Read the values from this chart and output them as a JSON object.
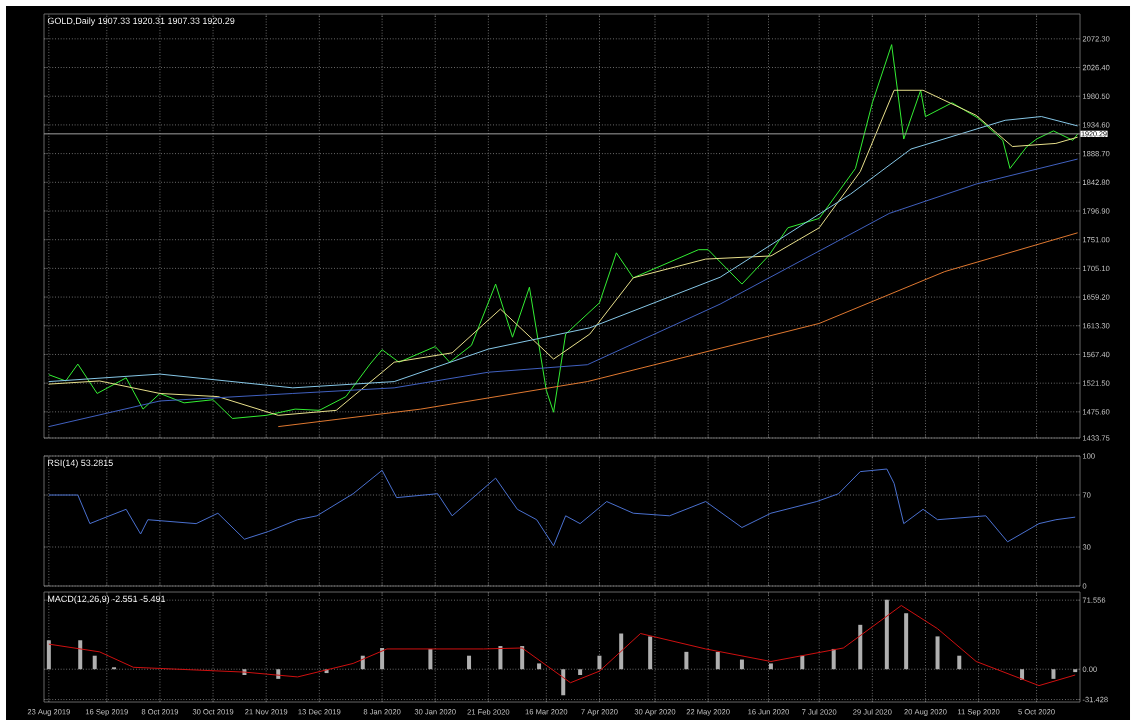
{
  "chart_data": [
    {
      "type": "line",
      "title": "GOLD,Daily 1907.33 1920.31 1907.33 1920.29",
      "grid": true,
      "tick_labels": "y",
      "xlim": [
        "2019-08-21",
        "2020-10-23"
      ],
      "xticks": [
        {
          "value": "2019-08-23",
          "label": null
        },
        {
          "value": "2019-09-16",
          "label": null
        },
        {
          "value": "2019-10-08",
          "label": null
        },
        {
          "value": "2019-10-30",
          "label": null
        },
        {
          "value": "2019-11-21",
          "label": null
        },
        {
          "value": "2019-12-13",
          "label": null
        },
        {
          "value": "2020-01-08",
          "label": null
        },
        {
          "value": "2020-01-30",
          "label": null
        },
        {
          "value": "2020-02-21",
          "label": null
        },
        {
          "value": "2020-03-16",
          "label": null
        },
        {
          "value": "2020-04-07",
          "label": null
        },
        {
          "value": "2020-04-30",
          "label": null
        },
        {
          "value": "2020-05-22",
          "label": null
        },
        {
          "value": "2020-06-16",
          "label": null
        },
        {
          "value": "2020-07-07",
          "label": null
        },
        {
          "value": "2020-07-29",
          "label": null
        },
        {
          "value": "2020-08-20",
          "label": null
        },
        {
          "value": "2020-09-11",
          "label": null
        },
        {
          "value": "2020-10-05",
          "label": null
        }
      ],
      "ylim": [
        1433.75,
        2112
      ],
      "yticks": [
        {
          "value": 2072.3,
          "label": "2072.30"
        },
        {
          "value": 2026.4,
          "label": "2026.40"
        },
        {
          "value": 1980.5,
          "label": "1980.50"
        },
        {
          "value": 1934.6,
          "label": "1934.60"
        },
        {
          "value": 1888.7,
          "label": "1888.70"
        },
        {
          "value": 1842.8,
          "label": "1842.80"
        },
        {
          "value": 1796.9,
          "label": "1796.90"
        },
        {
          "value": 1751.0,
          "label": "1751.00"
        },
        {
          "value": 1705.1,
          "label": "1705.10"
        },
        {
          "value": 1659.2,
          "label": "1659.20"
        },
        {
          "value": 1613.3,
          "label": "1613.30"
        },
        {
          "value": 1567.4,
          "label": "1567.40"
        },
        {
          "value": 1521.5,
          "label": "1521.50"
        },
        {
          "value": 1475.6,
          "label": "1475.60"
        },
        {
          "value": 1433.75,
          "label": "1433.75"
        }
      ],
      "ref_lines": [
        {
          "axis": "y",
          "value": 1920.29,
          "label": "1920.29",
          "color": "#a0a0a0"
        }
      ],
      "series": [
        {
          "color": "#33ee33",
          "x": [
            "2019-08-23",
            "2019-08-30",
            "2019-09-04",
            "2019-09-12",
            "2019-09-24",
            "2019-10-01",
            "2019-10-08",
            "2019-10-18",
            "2019-10-30",
            "2019-11-07",
            "2019-11-21",
            "2019-12-03",
            "2019-12-13",
            "2019-12-24",
            "2020-01-03",
            "2020-01-08",
            "2020-01-15",
            "2020-01-30",
            "2020-02-05",
            "2020-02-14",
            "2020-02-24",
            "2020-03-02",
            "2020-03-09",
            "2020-03-16",
            "2020-03-19",
            "2020-03-24",
            "2020-04-07",
            "2020-04-14",
            "2020-04-21",
            "2020-04-30",
            "2020-05-18",
            "2020-05-22",
            "2020-06-05",
            "2020-06-16",
            "2020-06-24",
            "2020-07-07",
            "2020-07-22",
            "2020-07-29",
            "2020-08-06",
            "2020-08-11",
            "2020-08-18",
            "2020-08-20",
            "2020-08-31",
            "2020-09-11",
            "2020-09-21",
            "2020-09-24",
            "2020-10-01",
            "2020-10-05",
            "2020-10-12",
            "2020-10-20",
            "2020-10-22"
          ],
          "values": [
            1535,
            1525,
            1552,
            1505,
            1530,
            1480,
            1505,
            1490,
            1495,
            1465,
            1470,
            1480,
            1478,
            1500,
            1552,
            1575,
            1555,
            1580,
            1555,
            1582,
            1680,
            1595,
            1675,
            1510,
            1475,
            1600,
            1650,
            1730,
            1690,
            1705,
            1735,
            1735,
            1680,
            1725,
            1770,
            1785,
            1865,
            1970,
            2063,
            1912,
            1990,
            1948,
            1970,
            1945,
            1910,
            1865,
            1900,
            1912,
            1925,
            1910,
            1920
          ]
        },
        {
          "color": "#e8e08c",
          "x": [
            "2019-08-23",
            "2019-09-13",
            "2019-10-08",
            "2019-11-01",
            "2019-11-26",
            "2019-12-20",
            "2020-01-13",
            "2020-02-06",
            "2020-02-26",
            "2020-03-19",
            "2020-04-03",
            "2020-04-21",
            "2020-05-21",
            "2020-06-17",
            "2020-07-07",
            "2020-07-24",
            "2020-08-07",
            "2020-08-19",
            "2020-09-10",
            "2020-09-25",
            "2020-10-13",
            "2020-10-22"
          ],
          "values": [
            1520,
            1525,
            1505,
            1500,
            1470,
            1478,
            1555,
            1570,
            1640,
            1560,
            1600,
            1690,
            1720,
            1725,
            1770,
            1860,
            1990,
            1990,
            1950,
            1900,
            1905,
            1915
          ]
        },
        {
          "color": "#87c8e8",
          "x": [
            "2019-08-23",
            "2019-10-08",
            "2019-12-02",
            "2020-01-13",
            "2020-02-21",
            "2020-04-03",
            "2020-05-27",
            "2020-07-20",
            "2020-08-14",
            "2020-09-22",
            "2020-10-07",
            "2020-10-22"
          ],
          "values": [
            1524,
            1536,
            1514,
            1524,
            1576,
            1610,
            1691,
            1824,
            1896,
            1942,
            1948,
            1933
          ]
        },
        {
          "color": "#4060c0",
          "x": [
            "2019-08-23",
            "2019-10-08",
            "2019-12-02",
            "2020-01-13",
            "2020-02-21",
            "2020-04-02",
            "2020-05-27",
            "2020-08-05",
            "2020-09-10",
            "2020-10-22"
          ],
          "values": [
            1452,
            1493,
            1505,
            1514,
            1539,
            1551,
            1648,
            1793,
            1840,
            1880
          ]
        },
        {
          "color": "#e07830",
          "x": [
            "2019-11-26",
            "2020-01-24",
            "2020-04-02",
            "2020-07-07",
            "2020-08-28",
            "2020-10-22"
          ],
          "values": [
            1452,
            1480,
            1524,
            1617,
            1700,
            1762
          ]
        }
      ]
    },
    {
      "type": "line",
      "title": "RSI(14) 53.2815",
      "grid": true,
      "tick_labels": "y",
      "xlim": [
        "2019-08-21",
        "2020-10-23"
      ],
      "xticks": [
        {
          "value": "2019-08-23",
          "label": null
        },
        {
          "value": "2019-09-16",
          "label": null
        },
        {
          "value": "2019-10-08",
          "label": null
        },
        {
          "value": "2019-10-30",
          "label": null
        },
        {
          "value": "2019-11-21",
          "label": null
        },
        {
          "value": "2019-12-13",
          "label": null
        },
        {
          "value": "2020-01-08",
          "label": null
        },
        {
          "value": "2020-01-30",
          "label": null
        },
        {
          "value": "2020-02-21",
          "label": null
        },
        {
          "value": "2020-03-16",
          "label": null
        },
        {
          "value": "2020-04-07",
          "label": null
        },
        {
          "value": "2020-04-30",
          "label": null
        },
        {
          "value": "2020-05-22",
          "label": null
        },
        {
          "value": "2020-06-16",
          "label": null
        },
        {
          "value": "2020-07-07",
          "label": null
        },
        {
          "value": "2020-07-29",
          "label": null
        },
        {
          "value": "2020-08-20",
          "label": null
        },
        {
          "value": "2020-09-11",
          "label": null
        },
        {
          "value": "2020-10-05",
          "label": null
        }
      ],
      "ylim": [
        0,
        100
      ],
      "yticks": [
        0,
        30,
        70,
        100
      ],
      "series": [
        {
          "color": "#4a70d0",
          "x": [
            "2019-08-23",
            "2019-09-04",
            "2019-09-09",
            "2019-09-13",
            "2019-09-24",
            "2019-09-30",
            "2019-10-03",
            "2019-10-23",
            "2019-11-01",
            "2019-11-12",
            "2019-11-22",
            "2019-12-04",
            "2019-12-12",
            "2019-12-27",
            "2020-01-08",
            "2020-01-14",
            "2020-01-31",
            "2020-02-06",
            "2020-02-24",
            "2020-03-04",
            "2020-03-12",
            "2020-03-19",
            "2020-03-24",
            "2020-03-30",
            "2020-04-10",
            "2020-04-21",
            "2020-05-06",
            "2020-05-21",
            "2020-06-05",
            "2020-06-17",
            "2020-07-06",
            "2020-07-15",
            "2020-07-24",
            "2020-08-04",
            "2020-08-07",
            "2020-08-11",
            "2020-08-19",
            "2020-08-25",
            "2020-09-14",
            "2020-09-23",
            "2020-10-06",
            "2020-10-13",
            "2020-10-21"
          ],
          "values": [
            70,
            70,
            48,
            51,
            59,
            40,
            51,
            48,
            56,
            36,
            42,
            51,
            54,
            71,
            89,
            68,
            71,
            54,
            83,
            59,
            51,
            31,
            54,
            48,
            65,
            56,
            54,
            65,
            45,
            56,
            65,
            71,
            88,
            90,
            79,
            48,
            59,
            51,
            54,
            34,
            48,
            51,
            53
          ]
        }
      ]
    },
    {
      "type": "bar",
      "title": "MACD(12,26,9) -2.551 -5.491",
      "grid": true,
      "xlim": [
        "2019-08-21",
        "2020-10-23"
      ],
      "xticks": [
        {
          "value": "2019-08-23",
          "label": "23 Aug 2019"
        },
        {
          "value": "2019-09-16",
          "label": "16 Sep 2019"
        },
        {
          "value": "2019-10-08",
          "label": "8 Oct 2019"
        },
        {
          "value": "2019-10-30",
          "label": "30 Oct 2019"
        },
        {
          "value": "2019-11-21",
          "label": "21 Nov 2019"
        },
        {
          "value": "2019-12-13",
          "label": "13 Dec 2019"
        },
        {
          "value": "2020-01-08",
          "label": "8 Jan 2020"
        },
        {
          "value": "2020-01-30",
          "label": "30 Jan 2020"
        },
        {
          "value": "2020-02-21",
          "label": "21 Feb 2020"
        },
        {
          "value": "2020-03-16",
          "label": "16 Mar 2020"
        },
        {
          "value": "2020-04-07",
          "label": "7 Apr 2020"
        },
        {
          "value": "2020-04-30",
          "label": "30 Apr 2020"
        },
        {
          "value": "2020-05-22",
          "label": "22 May 2020"
        },
        {
          "value": "2020-06-16",
          "label": "16 Jun 2020"
        },
        {
          "value": "2020-07-07",
          "label": "7 Jul 2020"
        },
        {
          "value": "2020-07-29",
          "label": "29 Jul 2020"
        },
        {
          "value": "2020-08-20",
          "label": "20 Aug 2020"
        },
        {
          "value": "2020-09-11",
          "label": "11 Sep 2020"
        },
        {
          "value": "2020-10-05",
          "label": "5 Oct 2020"
        }
      ],
      "ylim": [
        -34,
        80
      ],
      "yticks": [
        -31.428,
        {
          "value": 0,
          "label": "0.00"
        },
        71.556
      ],
      "series": [
        {
          "color": "#b0b0b0",
          "x": [
            "2019-08-23",
            "2019-09-05",
            "2019-09-11",
            "2019-09-19",
            "2019-10-14",
            "2019-11-12",
            "2019-11-26",
            "2019-12-16",
            "2019-12-31",
            "2020-01-08",
            "2020-01-28",
            "2020-02-13",
            "2020-02-26",
            "2020-03-06",
            "2020-03-13",
            "2020-03-23",
            "2020-03-30",
            "2020-04-07",
            "2020-04-16",
            "2020-04-28",
            "2020-05-13",
            "2020-05-26",
            "2020-06-05",
            "2020-06-17",
            "2020-06-30",
            "2020-07-13",
            "2020-07-24",
            "2020-08-04",
            "2020-08-12",
            "2020-08-25",
            "2020-09-03",
            "2020-09-17",
            "2020-09-29",
            "2020-10-12",
            "2020-10-21"
          ],
          "values": [
            30,
            30,
            14,
            2,
            0,
            -6,
            -10,
            -4,
            14,
            22,
            21,
            14,
            24,
            24,
            6,
            -27,
            -6,
            14,
            37,
            34,
            18,
            18,
            10,
            6,
            14,
            21,
            46,
            72,
            58,
            34,
            14,
            0,
            -11,
            -10,
            -3
          ]
        },
        {
          "type": "line",
          "color": "#d01010",
          "x": [
            "2019-08-23",
            "2019-09-13",
            "2019-09-27",
            "2019-11-12",
            "2019-12-04",
            "2019-12-27",
            "2020-01-10",
            "2020-02-19",
            "2020-03-06",
            "2020-03-26",
            "2020-04-07",
            "2020-04-24",
            "2020-05-21",
            "2020-06-17",
            "2020-07-17",
            "2020-08-10",
            "2020-08-25",
            "2020-09-10",
            "2020-10-06",
            "2020-10-21"
          ],
          "values": [
            26,
            18,
            2,
            -3,
            -8,
            6,
            21,
            21,
            22,
            -14,
            -2,
            37,
            21,
            8,
            22,
            66,
            42,
            8,
            -17,
            -6
          ]
        }
      ]
    }
  ]
}
